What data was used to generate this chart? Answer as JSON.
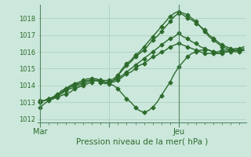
{
  "xlabel": "Pression niveau de la mer( hPa )",
  "background_color": "#cce8dc",
  "grid_color": "#aaccbc",
  "line_color": "#2d6b2d",
  "marker": "D",
  "markersize": 2.5,
  "linewidth": 1.0,
  "ylim": [
    1011.8,
    1018.8
  ],
  "yticks": [
    1012,
    1013,
    1014,
    1015,
    1016,
    1017,
    1018
  ],
  "xtick_labels": [
    "Mar",
    "",
    "Jeu"
  ],
  "xtick_positions": [
    0,
    16,
    32
  ],
  "vline_x_mar": 0,
  "vline_x_jeu": 32,
  "n_points": 48,
  "series": [
    [
      1012.7,
      1012.9,
      1013.1,
      1013.2,
      1013.4,
      1013.7,
      1013.8,
      1014.0,
      1014.1,
      1014.1,
      1014.2,
      1014.3,
      1014.3,
      1014.3,
      1014.2,
      1014.1,
      1014.2,
      1014.3,
      1014.6,
      1015.0,
      1015.3,
      1015.5,
      1015.8,
      1016.0,
      1016.3,
      1016.6,
      1016.9,
      1017.2,
      1017.5,
      1017.8,
      1018.1,
      1018.3,
      1018.4,
      1018.3,
      1018.2,
      1018.0,
      1017.8,
      1017.5,
      1017.2,
      1016.9,
      1016.7,
      1016.5,
      1016.3,
      1016.2,
      1016.1,
      1016.0,
      1016.0,
      1016.1
    ],
    [
      1013.1,
      1013.1,
      1013.2,
      1013.2,
      1013.3,
      1013.4,
      1013.5,
      1013.6,
      1013.8,
      1013.9,
      1014.0,
      1014.1,
      1014.2,
      1014.3,
      1014.3,
      1014.2,
      1014.1,
      1014.0,
      1013.8,
      1013.5,
      1013.2,
      1013.0,
      1012.7,
      1012.5,
      1012.4,
      1012.5,
      1012.7,
      1013.0,
      1013.4,
      1013.8,
      1014.2,
      1014.7,
      1015.1,
      1015.4,
      1015.7,
      1015.9,
      1016.0,
      1016.1,
      1016.1,
      1016.1,
      1016.0,
      1016.0,
      1016.1,
      1016.1,
      1016.1,
      1016.2,
      1016.2,
      1016.3
    ],
    [
      1013.0,
      1013.1,
      1013.2,
      1013.3,
      1013.5,
      1013.6,
      1013.8,
      1013.9,
      1014.1,
      1014.2,
      1014.3,
      1014.4,
      1014.4,
      1014.4,
      1014.3,
      1014.3,
      1014.3,
      1014.4,
      1014.6,
      1014.9,
      1015.2,
      1015.4,
      1015.7,
      1015.9,
      1016.1,
      1016.4,
      1016.7,
      1016.9,
      1017.2,
      1017.5,
      1017.8,
      1018.1,
      1018.3,
      1018.2,
      1018.0,
      1017.9,
      1017.7,
      1017.5,
      1017.3,
      1017.0,
      1016.8,
      1016.6,
      1016.4,
      1016.3,
      1016.2,
      1016.1,
      1016.1,
      1016.1
    ],
    [
      1013.0,
      1013.1,
      1013.2,
      1013.3,
      1013.4,
      1013.6,
      1013.7,
      1013.9,
      1014.0,
      1014.1,
      1014.2,
      1014.3,
      1014.3,
      1014.3,
      1014.2,
      1014.2,
      1014.2,
      1014.3,
      1014.4,
      1014.6,
      1014.8,
      1015.0,
      1015.2,
      1015.4,
      1015.6,
      1015.8,
      1016.0,
      1016.2,
      1016.4,
      1016.6,
      1016.8,
      1016.9,
      1017.1,
      1016.9,
      1016.8,
      1016.6,
      1016.5,
      1016.3,
      1016.2,
      1016.1,
      1016.0,
      1015.9,
      1015.9,
      1016.0,
      1016.0,
      1016.1,
      1016.1,
      1016.1
    ],
    [
      1013.0,
      1013.1,
      1013.2,
      1013.3,
      1013.4,
      1013.5,
      1013.7,
      1013.8,
      1013.9,
      1014.0,
      1014.1,
      1014.2,
      1014.3,
      1014.3,
      1014.3,
      1014.2,
      1014.2,
      1014.2,
      1014.3,
      1014.5,
      1014.7,
      1014.8,
      1015.0,
      1015.2,
      1015.3,
      1015.5,
      1015.7,
      1015.8,
      1016.0,
      1016.1,
      1016.3,
      1016.4,
      1016.5,
      1016.4,
      1016.3,
      1016.2,
      1016.1,
      1016.0,
      1015.9,
      1015.9,
      1015.9,
      1015.9,
      1016.0,
      1016.0,
      1016.1,
      1016.1,
      1016.1,
      1016.2
    ]
  ]
}
